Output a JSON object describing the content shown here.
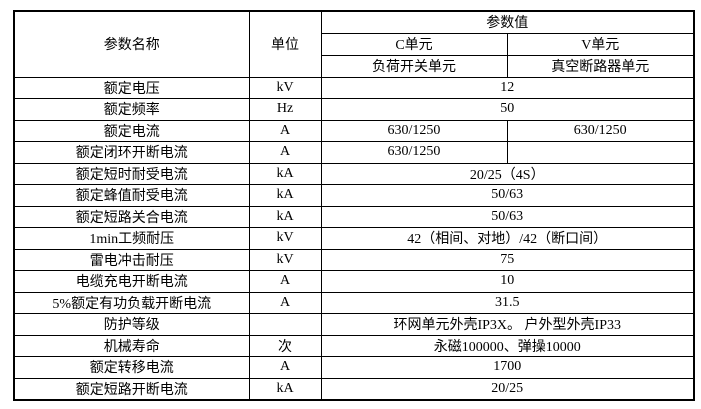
{
  "table": {
    "title_note": "",
    "header": {
      "param_name": "参数名称",
      "unit": "单位",
      "param_value": "参数值",
      "c_unit": "C单元",
      "v_unit": "V单元",
      "c_unit_sub": "负荷开关单元",
      "v_unit_sub": "真空断路器单元"
    },
    "rows": [
      {
        "name": "额定电压",
        "unit": "kV",
        "value": "12"
      },
      {
        "name": "额定频率",
        "unit": "Hz",
        "value": "50"
      },
      {
        "name": "额定电流",
        "unit": "A",
        "c": "630/1250",
        "v": "630/1250"
      },
      {
        "name": "额定闭环开断电流",
        "unit": "A",
        "c": "630/1250",
        "v": ""
      },
      {
        "name": "额定短时耐受电流",
        "unit": "kA",
        "value": "20/25（4S）"
      },
      {
        "name": "额定蜂值耐受电流",
        "unit": "kA",
        "value": "50/63"
      },
      {
        "name": "额定短路关合电流",
        "unit": "kA",
        "value": "50/63"
      },
      {
        "name": "1min工频耐压",
        "unit": "kV",
        "value": "42（相间、对地）/42（断口间）"
      },
      {
        "name": "雷电冲击耐压",
        "unit": "kV",
        "value": "75"
      },
      {
        "name": "电缆充电开断电流",
        "unit": "A",
        "value": "10"
      },
      {
        "name": "5%额定有功负载开断电流",
        "unit": "A",
        "value": "31.5"
      },
      {
        "name": "防护等级",
        "unit": "",
        "value": "环网单元外壳IP3X。 户外型外壳IP33"
      },
      {
        "name": "机械寿命",
        "unit": "次",
        "value": "永磁100000、弹操10000"
      },
      {
        "name": "额定转移电流",
        "unit": "A",
        "value": "1700"
      },
      {
        "name": "额定短路开断电流",
        "unit": "kA",
        "value": "20/25"
      }
    ],
    "colors": {
      "border": "#000000",
      "text": "#000000",
      "background": "#ffffff"
    }
  }
}
